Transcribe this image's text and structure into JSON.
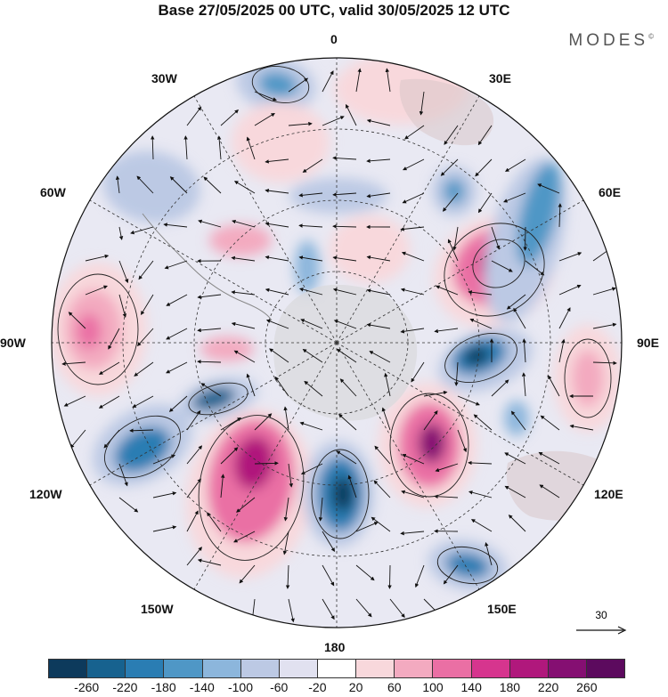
{
  "header": {
    "title": "Base 27/05/2025 00 UTC, valid 30/05/2025 12 UTC",
    "brand": "MODES",
    "brand_mark": "©"
  },
  "map": {
    "projection": "south-polar-stereographic",
    "longitude_labels": [
      "0",
      "30E",
      "60E",
      "90E",
      "120E",
      "150E",
      "180",
      "150W",
      "120W",
      "90W",
      "60W",
      "30W"
    ]
  },
  "reference_vector": {
    "label": "30"
  },
  "colorbar": {
    "colors": [
      "#0d3a5c",
      "#17628f",
      "#2a7db3",
      "#4f97c6",
      "#8cb6dc",
      "#bcc9e4",
      "#e1e1f0",
      "#ffffff",
      "#f8d8dc",
      "#f3aac0",
      "#ea6fa4",
      "#d6358e",
      "#b0187c",
      "#850f72",
      "#5c0a5e"
    ],
    "tick_labels": [
      "-260",
      "-220",
      "-180",
      "-140",
      "-100",
      "-60",
      "-20",
      "20",
      "60",
      "100",
      "140",
      "180",
      "220",
      "260"
    ]
  }
}
